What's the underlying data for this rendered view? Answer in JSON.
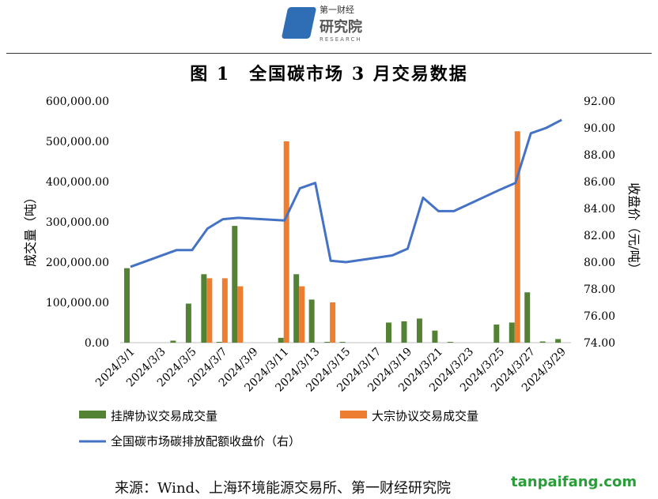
{
  "header": {
    "logo_cn": "第一财经",
    "logo_big": "研究院",
    "logo_en": "RESEARCH"
  },
  "chart_data": {
    "type": "bar+line",
    "title": "图 1　全国碳市场 3 月交易数据",
    "ylabel": "成交量（吨）",
    "y2label": "收盘价（元/吨）",
    "ylim": [
      0,
      600000
    ],
    "y2lim": [
      74,
      92
    ],
    "yticks": [
      "0.00",
      "100,000.00",
      "200,000.00",
      "300,000.00",
      "400,000.00",
      "500,000.00",
      "600,000.00"
    ],
    "y2ticks": [
      "74.00",
      "76.00",
      "78.00",
      "80.00",
      "82.00",
      "84.00",
      "86.00",
      "88.00",
      "90.00",
      "92.00"
    ],
    "categories": [
      "2024/3/1",
      "2024/3/2",
      "2024/3/3",
      "2024/3/4",
      "2024/3/5",
      "2024/3/6",
      "2024/3/7",
      "2024/3/8",
      "2024/3/9",
      "2024/3/10",
      "2024/3/11",
      "2024/3/12",
      "2024/3/13",
      "2024/3/14",
      "2024/3/15",
      "2024/3/16",
      "2024/3/17",
      "2024/3/18",
      "2024/3/19",
      "2024/3/20",
      "2024/3/21",
      "2024/3/22",
      "2024/3/23",
      "2024/3/24",
      "2024/3/25",
      "2024/3/26",
      "2024/3/27",
      "2024/3/28",
      "2024/3/29"
    ],
    "xticks": [
      "2024/3/1",
      "2024/3/3",
      "2024/3/5",
      "2024/3/7",
      "2024/3/9",
      "2024/3/11",
      "2024/3/13",
      "2024/3/15",
      "2024/3/17",
      "2024/3/19",
      "2024/3/21",
      "2024/3/23",
      "2024/3/25",
      "2024/3/27",
      "2024/3/29"
    ],
    "series": [
      {
        "name": "挂牌协议交易成交量",
        "type": "bar",
        "color": "#548235",
        "values": [
          185000,
          null,
          null,
          5000,
          97000,
          170000,
          2000,
          290000,
          null,
          null,
          12000,
          170000,
          107000,
          2000,
          2000,
          null,
          null,
          50000,
          53000,
          60000,
          30000,
          2000,
          null,
          null,
          45000,
          50000,
          125000,
          3000,
          9000
        ]
      },
      {
        "name": "大宗协议交易成交量",
        "type": "bar",
        "color": "#ed7d31",
        "values": [
          0,
          null,
          null,
          0,
          0,
          160000,
          160000,
          140000,
          null,
          null,
          500000,
          140000,
          0,
          100000,
          0,
          null,
          null,
          0,
          0,
          0,
          0,
          0,
          null,
          null,
          0,
          525000,
          0,
          0,
          0
        ]
      },
      {
        "name": "全国碳市场碳排放配额收盘价（右）",
        "type": "line",
        "color": "#4472c4",
        "values": [
          79.65,
          null,
          null,
          80.9,
          80.9,
          82.5,
          83.2,
          83.3,
          null,
          null,
          83.1,
          85.5,
          85.9,
          80.1,
          80.0,
          null,
          null,
          80.5,
          81.0,
          84.8,
          83.8,
          83.8,
          null,
          null,
          85.4,
          85.9,
          89.6,
          90.0,
          90.6
        ]
      }
    ]
  },
  "source": "来源：Wind、上海环境能源交易所、第一财经研究院",
  "watermark": "tanpaifang.com"
}
